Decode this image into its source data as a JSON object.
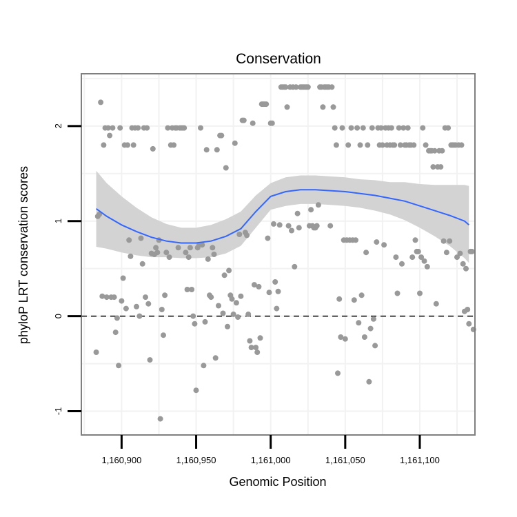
{
  "chart_data": {
    "type": "scatter",
    "title": "Conservation",
    "xlabel": "Genomic Position",
    "ylabel": "phyloP LRT conservation scores",
    "xlim": [
      1160873,
      1161137
    ],
    "ylim": [
      -1.25,
      2.55
    ],
    "xticks": [
      {
        "value": 1160900,
        "label": "1,160,900"
      },
      {
        "value": 1160950,
        "label": "1,160,950"
      },
      {
        "value": 1161000,
        "label": "1,161,000"
      },
      {
        "value": 1161050,
        "label": "1,161,050"
      },
      {
        "value": 1161100,
        "label": "1,161,100"
      }
    ],
    "yticks": [
      {
        "value": -1,
        "label": "-1"
      },
      {
        "value": 0,
        "label": "0"
      },
      {
        "value": 1,
        "label": "1"
      },
      {
        "value": 2,
        "label": "2"
      }
    ],
    "grid": true,
    "reference_line": {
      "y": 0,
      "style": "dashed"
    },
    "points": [
      [
        1160883,
        -0.38
      ],
      [
        1160884,
        1.05
      ],
      [
        1160885,
        1.07
      ],
      [
        1160886,
        2.25
      ],
      [
        1160887,
        0.21
      ],
      [
        1160888,
        1.8
      ],
      [
        1160889,
        1.98
      ],
      [
        1160890,
        0.2
      ],
      [
        1160891,
        1.98
      ],
      [
        1160892,
        1.9
      ],
      [
        1160893,
        0.2
      ],
      [
        1160894,
        1.98
      ],
      [
        1160895,
        0.2
      ],
      [
        1160896,
        -0.17
      ],
      [
        1160897,
        -0.02
      ],
      [
        1160898,
        -0.52
      ],
      [
        1160899,
        1.98
      ],
      [
        1160900,
        0.16
      ],
      [
        1160901,
        0.4
      ],
      [
        1160902,
        1.8
      ],
      [
        1160903,
        0.08
      ],
      [
        1160904,
        1.8
      ],
      [
        1160905,
        0.8
      ],
      [
        1160906,
        0.63
      ],
      [
        1160907,
        1.98
      ],
      [
        1160908,
        1.8
      ],
      [
        1160909,
        1.98
      ],
      [
        1160910,
        0.1
      ],
      [
        1160911,
        1.98
      ],
      [
        1160912,
        0.0
      ],
      [
        1160913,
        0.82
      ],
      [
        1160914,
        0.55
      ],
      [
        1160915,
        1.98
      ],
      [
        1160916,
        0.2
      ],
      [
        1160917,
        1.98
      ],
      [
        1160918,
        0.13
      ],
      [
        1160919,
        -0.46
      ],
      [
        1160920,
        0.66
      ],
      [
        1160921,
        1.76
      ],
      [
        1160922,
        0.65
      ],
      [
        1160923,
        0.72
      ],
      [
        1160924,
        0.67
      ],
      [
        1160925,
        0.8
      ],
      [
        1160926,
        -1.08
      ],
      [
        1160927,
        0.07
      ],
      [
        1160928,
        -0.2
      ],
      [
        1160929,
        0.22
      ],
      [
        1160930,
        0.67
      ],
      [
        1160931,
        1.98
      ],
      [
        1160932,
        0.62
      ],
      [
        1160933,
        1.8
      ],
      [
        1160934,
        1.98
      ],
      [
        1160935,
        1.8
      ],
      [
        1160936,
        1.98
      ],
      [
        1160937,
        1.98
      ],
      [
        1160938,
        0.72
      ],
      [
        1160939,
        1.98
      ],
      [
        1160940,
        1.98
      ],
      [
        1160941,
        1.98
      ],
      [
        1160942,
        1.98
      ],
      [
        1160943,
        0.67
      ],
      [
        1160944,
        0.28
      ],
      [
        1160945,
        0.62
      ],
      [
        1160946,
        0.72
      ],
      [
        1160947,
        0.28
      ],
      [
        1160948,
        0.0
      ],
      [
        1160949,
        -0.08
      ],
      [
        1160950,
        -0.78
      ],
      [
        1160951,
        0.72
      ],
      [
        1160952,
        0.75
      ],
      [
        1160953,
        1.98
      ],
      [
        1160954,
        0.75
      ],
      [
        1160955,
        -0.52
      ],
      [
        1160956,
        -0.06
      ],
      [
        1160957,
        1.75
      ],
      [
        1160958,
        0.6
      ],
      [
        1160959,
        0.22
      ],
      [
        1160960,
        0.2
      ],
      [
        1160961,
        0.72
      ],
      [
        1160962,
        0.65
      ],
      [
        1160963,
        -0.44
      ],
      [
        1160964,
        1.75
      ],
      [
        1160965,
        0.11
      ],
      [
        1160966,
        1.9
      ],
      [
        1160967,
        1.9
      ],
      [
        1160968,
        0.03
      ],
      [
        1160969,
        0.43
      ],
      [
        1160970,
        1.56
      ],
      [
        1160971,
        -0.11
      ],
      [
        1160972,
        0.48
      ],
      [
        1160973,
        0.22
      ],
      [
        1160974,
        0.18
      ],
      [
        1160975,
        0.02
      ],
      [
        1160976,
        1.82
      ],
      [
        1160977,
        0.14
      ],
      [
        1160978,
        -0.01
      ],
      [
        1160979,
        0.86
      ],
      [
        1160980,
        0.21
      ],
      [
        1160981,
        2.06
      ],
      [
        1160982,
        2.06
      ],
      [
        1160983,
        0.88
      ],
      [
        1160984,
        0.85
      ],
      [
        1160985,
        0.02
      ],
      [
        1160986,
        -0.26
      ],
      [
        1160987,
        -0.33
      ],
      [
        1160988,
        2.03
      ],
      [
        1160989,
        0.33
      ],
      [
        1160990,
        -0.33
      ],
      [
        1160991,
        -0.38
      ],
      [
        1160992,
        0.31
      ],
      [
        1160993,
        -0.23
      ],
      [
        1160994,
        2.23
      ],
      [
        1160995,
        2.23
      ],
      [
        1160996,
        2.23
      ],
      [
        1160997,
        2.23
      ],
      [
        1160998,
        0.82
      ],
      [
        1160999,
        0.25
      ],
      [
        1161000,
        2.03
      ],
      [
        1161001,
        2.03
      ],
      [
        1161002,
        0.97
      ],
      [
        1161003,
        0.36
      ],
      [
        1161004,
        0.08
      ],
      [
        1161005,
        0.26
      ],
      [
        1161006,
        0.96
      ],
      [
        1161007,
        2.41
      ],
      [
        1161008,
        2.41
      ],
      [
        1161009,
        2.41
      ],
      [
        1161010,
        2.41
      ],
      [
        1161011,
        2.2
      ],
      [
        1161012,
        0.95
      ],
      [
        1161013,
        2.41
      ],
      [
        1161014,
        0.9
      ],
      [
        1161015,
        2.41
      ],
      [
        1161016,
        0.52
      ],
      [
        1161017,
        2.41
      ],
      [
        1161018,
        1.08
      ],
      [
        1161019,
        0.93
      ],
      [
        1161020,
        2.41
      ],
      [
        1161021,
        2.41
      ],
      [
        1161022,
        2.41
      ],
      [
        1161023,
        2.41
      ],
      [
        1161024,
        2.41
      ],
      [
        1161025,
        2.41
      ],
      [
        1161026,
        0.95
      ],
      [
        1161027,
        1.12
      ],
      [
        1161028,
        0.95
      ],
      [
        1161029,
        0.93
      ],
      [
        1161030,
        0.93
      ],
      [
        1161031,
        0.95
      ],
      [
        1161032,
        1.17
      ],
      [
        1161033,
        2.41
      ],
      [
        1161034,
        2.41
      ],
      [
        1161035,
        2.2
      ],
      [
        1161036,
        2.41
      ],
      [
        1161037,
        2.41
      ],
      [
        1161038,
        2.41
      ],
      [
        1161039,
        2.41
      ],
      [
        1161040,
        0.95
      ],
      [
        1161041,
        2.41
      ],
      [
        1161042,
        2.2
      ],
      [
        1161043,
        1.98
      ],
      [
        1161044,
        1.8
      ],
      [
        1161045,
        -0.6
      ],
      [
        1161046,
        0.18
      ],
      [
        1161047,
        -0.22
      ],
      [
        1161048,
        1.98
      ],
      [
        1161049,
        0.8
      ],
      [
        1161050,
        -0.24
      ],
      [
        1161051,
        0.8
      ],
      [
        1161052,
        1.8
      ],
      [
        1161053,
        0.8
      ],
      [
        1161054,
        1.98
      ],
      [
        1161055,
        0.8
      ],
      [
        1161056,
        0.17
      ],
      [
        1161057,
        0.8
      ],
      [
        1161058,
        1.98
      ],
      [
        1161059,
        -0.07
      ],
      [
        1161060,
        1.8
      ],
      [
        1161061,
        0.22
      ],
      [
        1161062,
        1.98
      ],
      [
        1161063,
        -0.22
      ],
      [
        1161064,
        0.67
      ],
      [
        1161065,
        1.8
      ],
      [
        1161066,
        -0.69
      ],
      [
        1161067,
        -0.13
      ],
      [
        1161068,
        1.98
      ],
      [
        1161069,
        -0.03
      ],
      [
        1161070,
        -0.31
      ],
      [
        1161071,
        0.78
      ],
      [
        1161072,
        1.98
      ],
      [
        1161073,
        1.8
      ],
      [
        1161074,
        1.98
      ],
      [
        1161075,
        1.8
      ],
      [
        1161076,
        0.75
      ],
      [
        1161077,
        1.98
      ],
      [
        1161078,
        1.8
      ],
      [
        1161079,
        1.98
      ],
      [
        1161080,
        1.8
      ],
      [
        1161081,
        1.98
      ],
      [
        1161082,
        1.8
      ],
      [
        1161083,
        1.8
      ],
      [
        1161084,
        0.62
      ],
      [
        1161085,
        0.24
      ],
      [
        1161086,
        1.98
      ],
      [
        1161087,
        1.8
      ],
      [
        1161088,
        0.55
      ],
      [
        1161089,
        1.98
      ],
      [
        1161090,
        1.8
      ],
      [
        1161091,
        1.8
      ],
      [
        1161092,
        1.98
      ],
      [
        1161093,
        1.8
      ],
      [
        1161094,
        1.8
      ],
      [
        1161095,
        0.62
      ],
      [
        1161096,
        1.8
      ],
      [
        1161097,
        0.8
      ],
      [
        1161098,
        0.68
      ],
      [
        1161099,
        0.68
      ],
      [
        1161100,
        0.24
      ],
      [
        1161101,
        0.62
      ],
      [
        1161102,
        1.98
      ],
      [
        1161103,
        0.58
      ],
      [
        1161104,
        1.8
      ],
      [
        1161105,
        0.52
      ],
      [
        1161106,
        1.74
      ],
      [
        1161107,
        1.74
      ],
      [
        1161108,
        1.74
      ],
      [
        1161109,
        1.57
      ],
      [
        1161110,
        1.74
      ],
      [
        1161111,
        0.13
      ],
      [
        1161112,
        1.57
      ],
      [
        1161113,
        1.74
      ],
      [
        1161114,
        1.57
      ],
      [
        1161115,
        1.74
      ],
      [
        1161116,
        0.79
      ],
      [
        1161117,
        1.98
      ],
      [
        1161118,
        0.67
      ],
      [
        1161119,
        1.98
      ],
      [
        1161120,
        0.79
      ],
      [
        1161121,
        1.8
      ],
      [
        1161122,
        1.8
      ],
      [
        1161123,
        1.8
      ],
      [
        1161124,
        1.8
      ],
      [
        1161125,
        0.62
      ],
      [
        1161126,
        1.8
      ],
      [
        1161127,
        0.66
      ],
      [
        1161128,
        1.8
      ],
      [
        1161129,
        0.55
      ],
      [
        1161130,
        0.05
      ],
      [
        1161131,
        0.5
      ],
      [
        1161132,
        0.07
      ],
      [
        1161133,
        -0.08
      ],
      [
        1161134,
        0.68
      ],
      [
        1161135,
        0.68
      ],
      [
        1161136,
        -0.14
      ]
    ],
    "smooth": {
      "method": "loess",
      "x": [
        1160883,
        1160890,
        1160900,
        1160910,
        1160920,
        1160930,
        1160940,
        1160950,
        1160960,
        1160970,
        1160980,
        1160990,
        1161000,
        1161010,
        1161020,
        1161030,
        1161040,
        1161050,
        1161060,
        1161070,
        1161080,
        1161090,
        1161100,
        1161110,
        1161120,
        1161130,
        1161133
      ],
      "y": [
        1.13,
        1.05,
        0.96,
        0.89,
        0.83,
        0.79,
        0.77,
        0.77,
        0.79,
        0.84,
        0.92,
        1.1,
        1.26,
        1.31,
        1.33,
        1.33,
        1.32,
        1.31,
        1.29,
        1.27,
        1.24,
        1.21,
        1.16,
        1.11,
        1.06,
        1.0,
        0.96
      ],
      "lower": [
        0.73,
        0.71,
        0.67,
        0.64,
        0.62,
        0.62,
        0.61,
        0.61,
        0.62,
        0.66,
        0.74,
        0.93,
        1.12,
        1.16,
        1.18,
        1.18,
        1.17,
        1.16,
        1.14,
        1.11,
        1.07,
        1.01,
        0.93,
        0.84,
        0.74,
        0.61,
        0.56
      ],
      "upper": [
        1.53,
        1.4,
        1.26,
        1.14,
        1.04,
        0.97,
        0.93,
        0.93,
        0.96,
        1.02,
        1.1,
        1.27,
        1.4,
        1.46,
        1.48,
        1.48,
        1.47,
        1.46,
        1.44,
        1.43,
        1.41,
        1.41,
        1.39,
        1.38,
        1.38,
        1.38,
        1.37
      ]
    },
    "colors": {
      "points": "#999999",
      "smooth_line": "#3366ff",
      "ribbon": "#d3d3d3",
      "panel_border": "#7f7f7f",
      "grid": "#f2f2f2",
      "zero_line": "#000000"
    }
  }
}
